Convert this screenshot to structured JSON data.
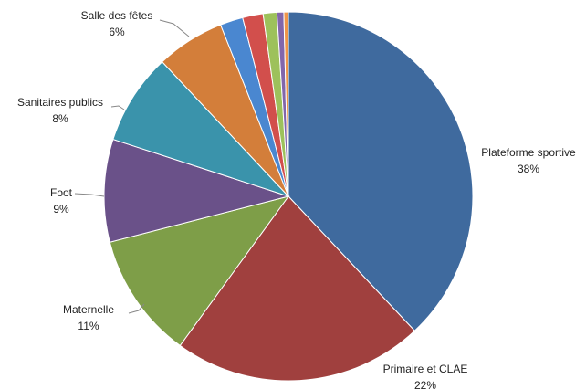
{
  "chart_data": {
    "type": "pie",
    "categories": [
      "Plateforme sportive",
      "Primaire et CLAE",
      "Maternelle",
      "Foot",
      "Sanitaires publics",
      "Salle des fêtes",
      null,
      null,
      null,
      null,
      null
    ],
    "values": [
      38,
      22,
      11,
      9,
      8,
      6,
      2,
      1.8,
      1.2,
      0.6,
      0.4
    ],
    "value_labels": [
      "38%",
      "22%",
      "11%",
      "9%",
      "8%",
      "6%",
      null,
      null,
      null,
      null,
      null
    ],
    "colors": [
      "#3f6a9e",
      "#a0403e",
      "#7e9e48",
      "#6a5189",
      "#3a93ab",
      "#d37e3a",
      "#4a87d0",
      "#d24f4c",
      "#9dc15b",
      "#8266ab",
      "#f0964a"
    ]
  }
}
